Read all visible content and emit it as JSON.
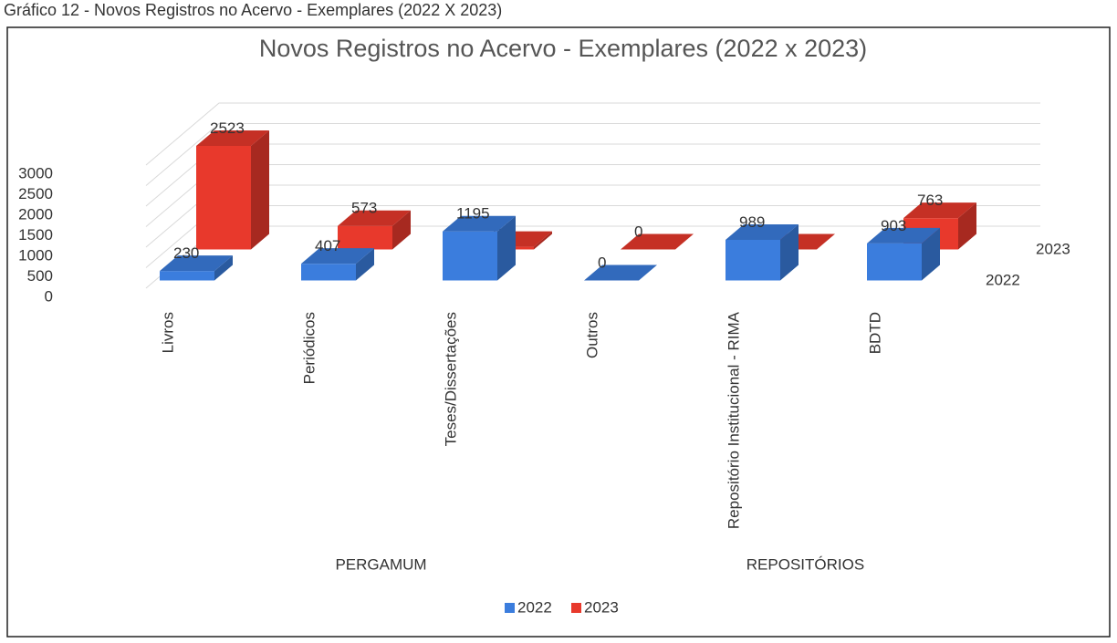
{
  "caption": "Gráfico 12 - Novos Registros no Acervo - Exemplares (2022 X 2023)",
  "chart_data": {
    "type": "bar3d",
    "title": "Novos Registros no Acervo - Exemplares (2022 x 2023)",
    "categories": [
      "Livros",
      "Periódicos",
      "Teses/Dissertações",
      "Outros",
      "Repositório Institucional - RIMA",
      "BDTD"
    ],
    "groups": [
      {
        "name": "PERGAMUM",
        "span": [
          0,
          3
        ]
      },
      {
        "name": "REPOSITÓRIOS",
        "span": [
          4,
          5
        ]
      }
    ],
    "series": [
      {
        "name": "2022",
        "color": "#3b7ddd",
        "values": [
          230,
          407,
          1195,
          0,
          989,
          903
        ]
      },
      {
        "name": "2023",
        "color": "#e8392c",
        "values": [
          2523,
          573,
          64,
          0,
          0,
          763
        ]
      }
    ],
    "ylim": [
      0,
      3000
    ],
    "yticks": [
      0,
      500,
      1000,
      1500,
      2000,
      2500,
      3000
    ],
    "grid": true,
    "legend": "bottom"
  }
}
